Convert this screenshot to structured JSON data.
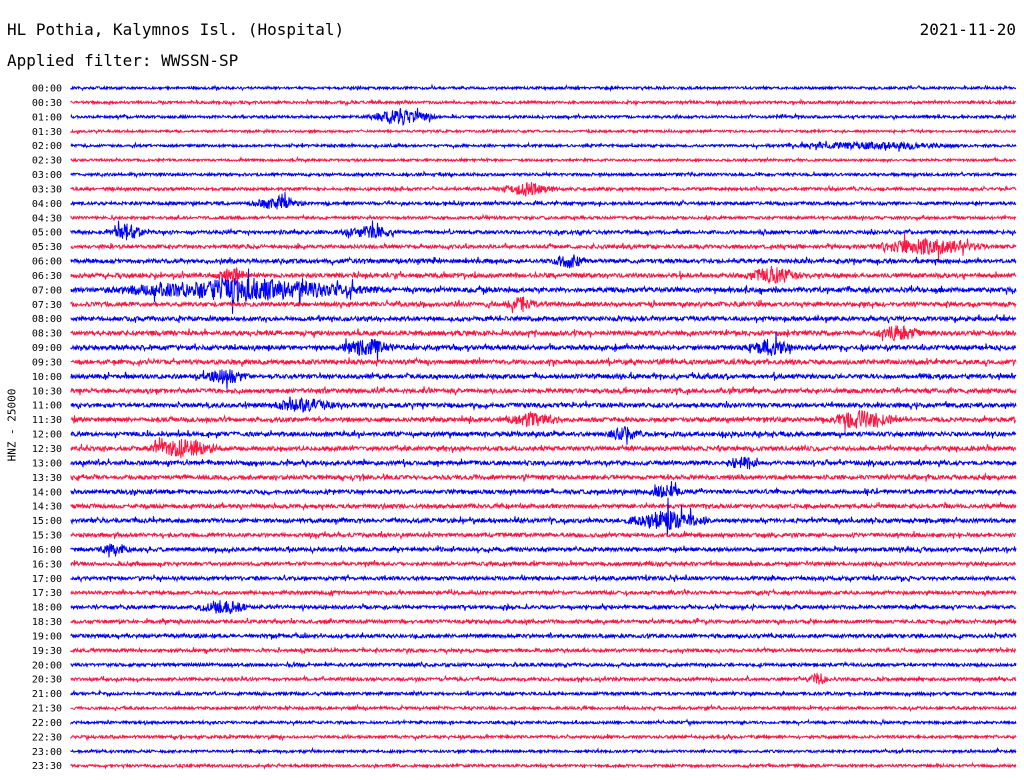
{
  "header": {
    "station": "HL Pothia, Kalymnos Isl. (Hospital)",
    "date": "2021-11-20",
    "filter_label": "Applied filter:",
    "filter_value": "WWSSN-SP"
  },
  "channel_label": "HNZ - 25000",
  "colors": {
    "blue": "#0000ff",
    "red": "#ff1744"
  },
  "chart_data": {
    "type": "line",
    "title": "HL Pothia, Kalymnos Isl. (Hospital)",
    "ylabel": "HNZ - 25000",
    "row_labels": [
      "00:00",
      "00:30",
      "01:00",
      "01:30",
      "02:00",
      "02:30",
      "03:00",
      "03:30",
      "04:00",
      "04:30",
      "05:00",
      "05:30",
      "06:00",
      "06:30",
      "07:00",
      "07:30",
      "08:00",
      "08:30",
      "09:00",
      "09:30",
      "10:00",
      "10:30",
      "11:00",
      "11:30",
      "12:00",
      "12:30",
      "13:00",
      "13:30",
      "14:00",
      "14:30",
      "15:00",
      "15:30",
      "16:00",
      "16:30",
      "17:00",
      "17:30",
      "18:00",
      "18:30",
      "19:00",
      "19:30",
      "20:00",
      "20:30",
      "21:00",
      "21:30",
      "22:00",
      "22:30",
      "23:00",
      "23:30"
    ],
    "row_colors": [
      "blue",
      "red",
      "blue",
      "red",
      "blue",
      "red",
      "blue",
      "red",
      "blue",
      "red",
      "blue",
      "red",
      "blue",
      "red",
      "blue",
      "red",
      "blue",
      "red",
      "blue",
      "red",
      "blue",
      "red",
      "blue",
      "red",
      "blue",
      "red",
      "blue",
      "red",
      "blue",
      "red",
      "blue",
      "red",
      "blue",
      "red",
      "blue",
      "red",
      "blue",
      "red",
      "blue",
      "red",
      "blue",
      "red",
      "blue",
      "red",
      "blue",
      "red",
      "blue",
      "red"
    ],
    "row_minutes": 30,
    "noise_level": [
      0.25,
      0.3,
      0.3,
      0.2,
      0.25,
      0.2,
      0.35,
      0.4,
      0.45,
      0.35,
      0.55,
      0.6,
      0.75,
      0.8,
      0.9,
      0.8,
      0.8,
      0.9,
      0.85,
      0.9,
      0.85,
      0.8,
      0.8,
      0.8,
      0.8,
      0.8,
      0.75,
      0.75,
      0.7,
      0.7,
      0.75,
      0.65,
      0.65,
      0.6,
      0.6,
      0.55,
      0.55,
      0.55,
      0.6,
      0.5,
      0.45,
      0.45,
      0.4,
      0.35,
      0.3,
      0.35,
      0.25,
      0.3
    ],
    "events": [
      {
        "row": "01:00",
        "minute": 10.5,
        "amplitude": 1.6,
        "duration": 1.2
      },
      {
        "row": "02:00",
        "minute": 25.5,
        "amplitude": 0.6,
        "duration": 3.0
      },
      {
        "row": "03:30",
        "minute": 14.5,
        "amplitude": 1.3,
        "duration": 1.0
      },
      {
        "row": "04:00",
        "minute": 6.5,
        "amplitude": 1.1,
        "duration": 1.0
      },
      {
        "row": "05:00",
        "minute": 1.8,
        "amplitude": 1.5,
        "duration": 0.6
      },
      {
        "row": "05:00",
        "minute": 9.5,
        "amplitude": 1.1,
        "duration": 1.0
      },
      {
        "row": "05:30",
        "minute": 27.2,
        "amplitude": 1.5,
        "duration": 2.0
      },
      {
        "row": "06:00",
        "minute": 15.8,
        "amplitude": 1.3,
        "duration": 0.6
      },
      {
        "row": "06:30",
        "minute": 5.1,
        "amplitude": 1.4,
        "duration": 0.6
      },
      {
        "row": "06:30",
        "minute": 22.3,
        "amplitude": 1.6,
        "duration": 1.0
      },
      {
        "row": "07:00",
        "minute": 5.5,
        "amplitude": 2.1,
        "duration": 4.6
      },
      {
        "row": "07:30",
        "minute": 14.3,
        "amplitude": 1.3,
        "duration": 0.6
      },
      {
        "row": "08:30",
        "minute": 26.3,
        "amplitude": 1.4,
        "duration": 0.8
      },
      {
        "row": "09:00",
        "minute": 9.4,
        "amplitude": 1.5,
        "duration": 1.0
      },
      {
        "row": "09:00",
        "minute": 22.2,
        "amplitude": 1.5,
        "duration": 0.8
      },
      {
        "row": "10:00",
        "minute": 4.9,
        "amplitude": 1.3,
        "duration": 0.8
      },
      {
        "row": "11:00",
        "minute": 7.4,
        "amplitude": 1.2,
        "duration": 1.2
      },
      {
        "row": "11:30",
        "minute": 14.7,
        "amplitude": 1.3,
        "duration": 1.0
      },
      {
        "row": "11:30",
        "minute": 25.1,
        "amplitude": 1.7,
        "duration": 1.2
      },
      {
        "row": "12:00",
        "minute": 17.6,
        "amplitude": 1.3,
        "duration": 0.6
      },
      {
        "row": "12:30",
        "minute": 3.6,
        "amplitude": 1.8,
        "duration": 1.2
      },
      {
        "row": "13:00",
        "minute": 21.3,
        "amplitude": 1.2,
        "duration": 0.6
      },
      {
        "row": "14:00",
        "minute": 18.9,
        "amplitude": 1.1,
        "duration": 0.6
      },
      {
        "row": "15:00",
        "minute": 18.9,
        "amplitude": 1.8,
        "duration": 1.4
      },
      {
        "row": "16:00",
        "minute": 1.4,
        "amplitude": 1.1,
        "duration": 0.6
      },
      {
        "row": "18:00",
        "minute": 4.8,
        "amplitude": 1.3,
        "duration": 1.0
      },
      {
        "row": "20:30",
        "minute": 23.7,
        "amplitude": 1.2,
        "duration": 0.4
      }
    ]
  }
}
